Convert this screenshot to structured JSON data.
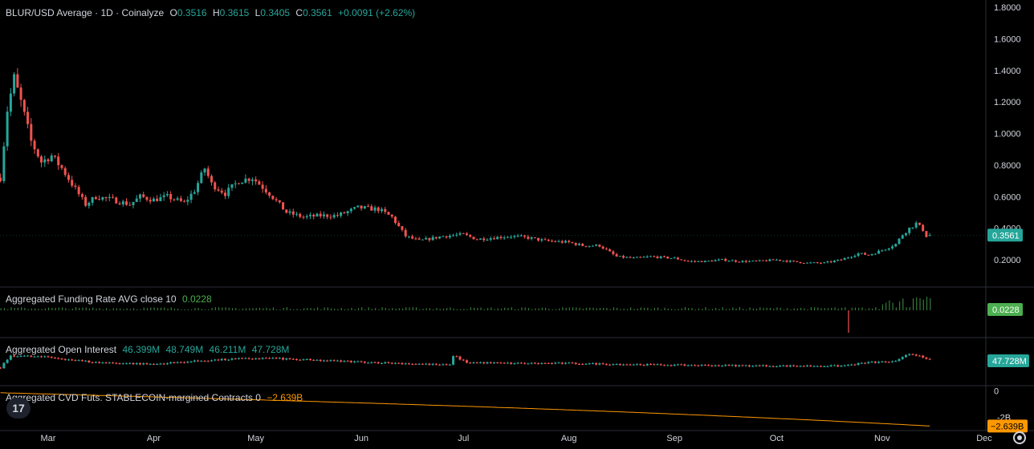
{
  "header": {
    "symbol": "BLUR/USD Average · 1D · Coinalyze",
    "o_label": "O",
    "o": "0.3516",
    "h_label": "H",
    "h": "0.3615",
    "l_label": "L",
    "l": "0.3405",
    "c_label": "C",
    "c": "0.3561",
    "change": "+0.0091 (+2.62%)"
  },
  "panes": {
    "funding": {
      "title": "Aggregated Funding Rate AVG close 10",
      "value": "0.0228",
      "badge": "0.0228"
    },
    "oi": {
      "title": "Aggregated Open Interest",
      "o": "46.399M",
      "h": "48.749M",
      "l": "46.211M",
      "c": "47.728M",
      "badge": "47.728M"
    },
    "cvd": {
      "title": "Aggregated CVD Futs. STABLECOIN-margined Contracts 0",
      "value": "−2.639B",
      "badge": "−2.639B",
      "tick_zero": "0",
      "tick_low": "-2B"
    }
  },
  "price_badge": "0.3561",
  "colors": {
    "up": "#26a69a",
    "down": "#ef5350",
    "funding": "#4caf50",
    "cvd": "#ff9800",
    "badge_price": "#26a69a",
    "badge_funding": "#4caf50",
    "badge_oi": "#26a69a",
    "badge_cvd": "#ff9800"
  },
  "icons": {
    "logo": "tradingview-logo-icon",
    "settings": "gear-icon"
  },
  "chart_data": {
    "type": "candlestick",
    "title": "BLUR/USD Average · 1D · Coinalyze",
    "y_ticks": [
      "1.8000",
      "1.6000",
      "1.4000",
      "1.2000",
      "1.0000",
      "0.8000",
      "0.6000",
      "0.4000",
      "0.2000"
    ],
    "ylim": [
      0.07,
      1.82
    ],
    "x_ticks": [
      "Mar",
      "Apr",
      "May",
      "Jun",
      "Jul",
      "Aug",
      "Sep",
      "Oct",
      "Nov",
      "Dec"
    ],
    "x_tick_dates": [
      "2024-03-01",
      "2024-04-01",
      "2024-05-01",
      "2024-06-01",
      "2024-07-01",
      "2024-08-01",
      "2024-09-01",
      "2024-10-01",
      "2024-11-01",
      "2024-12-01"
    ],
    "start_date": "2024-02-16",
    "end_date": "2024-11-15",
    "close_anchors": [
      [
        "2024-02-16",
        0.72
      ],
      [
        "2024-02-18",
        1.15
      ],
      [
        "2024-02-20",
        1.35
      ],
      [
        "2024-02-22",
        1.2
      ],
      [
        "2024-02-25",
        0.95
      ],
      [
        "2024-02-28",
        0.82
      ],
      [
        "2024-03-02",
        0.86
      ],
      [
        "2024-03-05",
        0.78
      ],
      [
        "2024-03-08",
        0.68
      ],
      [
        "2024-03-12",
        0.55
      ],
      [
        "2024-03-15",
        0.6
      ],
      [
        "2024-03-20",
        0.58
      ],
      [
        "2024-03-25",
        0.55
      ],
      [
        "2024-03-28",
        0.6
      ],
      [
        "2024-04-01",
        0.58
      ],
      [
        "2024-04-05",
        0.6
      ],
      [
        "2024-04-10",
        0.56
      ],
      [
        "2024-04-13",
        0.64
      ],
      [
        "2024-04-16",
        0.78
      ],
      [
        "2024-04-18",
        0.68
      ],
      [
        "2024-04-22",
        0.62
      ],
      [
        "2024-04-26",
        0.7
      ],
      [
        "2024-04-30",
        0.72
      ],
      [
        "2024-05-05",
        0.62
      ],
      [
        "2024-05-10",
        0.5
      ],
      [
        "2024-05-15",
        0.47
      ],
      [
        "2024-05-20",
        0.48
      ],
      [
        "2024-05-25",
        0.48
      ],
      [
        "2024-05-31",
        0.53
      ],
      [
        "2024-06-06",
        0.52
      ],
      [
        "2024-06-10",
        0.47
      ],
      [
        "2024-06-14",
        0.35
      ],
      [
        "2024-06-18",
        0.32
      ],
      [
        "2024-06-25",
        0.35
      ],
      [
        "2024-07-01",
        0.36
      ],
      [
        "2024-07-05",
        0.33
      ],
      [
        "2024-07-10",
        0.34
      ],
      [
        "2024-07-15",
        0.35
      ],
      [
        "2024-07-20",
        0.34
      ],
      [
        "2024-07-25",
        0.32
      ],
      [
        "2024-08-01",
        0.31
      ],
      [
        "2024-08-05",
        0.29
      ],
      [
        "2024-08-10",
        0.29
      ],
      [
        "2024-08-15",
        0.22
      ],
      [
        "2024-08-20",
        0.21
      ],
      [
        "2024-08-25",
        0.22
      ],
      [
        "2024-09-01",
        0.21
      ],
      [
        "2024-09-05",
        0.19
      ],
      [
        "2024-09-10",
        0.19
      ],
      [
        "2024-09-15",
        0.2
      ],
      [
        "2024-09-20",
        0.19
      ],
      [
        "2024-09-25",
        0.19
      ],
      [
        "2024-10-01",
        0.2
      ],
      [
        "2024-10-05",
        0.19
      ],
      [
        "2024-10-10",
        0.18
      ],
      [
        "2024-10-15",
        0.18
      ],
      [
        "2024-10-20",
        0.2
      ],
      [
        "2024-10-25",
        0.24
      ],
      [
        "2024-10-28",
        0.23
      ],
      [
        "2024-11-01",
        0.26
      ],
      [
        "2024-11-05",
        0.3
      ],
      [
        "2024-11-07",
        0.36
      ],
      [
        "2024-11-09",
        0.4
      ],
      [
        "2024-11-11",
        0.43
      ],
      [
        "2024-11-13",
        0.39
      ],
      [
        "2024-11-14",
        0.35
      ],
      [
        "2024-11-15",
        0.3561
      ]
    ],
    "last_candle": {
      "open": 0.3516,
      "high": 0.3615,
      "low": 0.3405,
      "close": 0.3561
    },
    "funding_rate": {
      "last": 0.0228,
      "ylim": [
        -0.03,
        0.03
      ]
    },
    "open_interest": {
      "ylim_m": [
        20,
        70
      ],
      "anchors_m": [
        [
          "2024-02-16",
          38
        ],
        [
          "2024-02-19",
          52
        ],
        [
          "2024-03-01",
          50
        ],
        [
          "2024-03-15",
          44
        ],
        [
          "2024-04-01",
          42
        ],
        [
          "2024-04-15",
          46
        ],
        [
          "2024-04-25",
          48
        ],
        [
          "2024-05-05",
          49
        ],
        [
          "2024-05-15",
          47
        ],
        [
          "2024-06-05",
          44
        ],
        [
          "2024-06-20",
          42
        ],
        [
          "2024-06-27",
          41
        ],
        [
          "2024-06-28",
          52
        ],
        [
          "2024-07-02",
          44
        ],
        [
          "2024-07-15",
          43
        ],
        [
          "2024-08-01",
          43
        ],
        [
          "2024-08-15",
          42
        ],
        [
          "2024-09-01",
          41
        ],
        [
          "2024-10-01",
          40
        ],
        [
          "2024-10-20",
          40
        ],
        [
          "2024-10-24",
          42
        ],
        [
          "2024-10-28",
          44
        ],
        [
          "2024-11-05",
          45
        ],
        [
          "2024-11-09",
          54
        ],
        [
          "2024-11-12",
          52
        ],
        [
          "2024-11-15",
          47.728
        ]
      ]
    },
    "cvd": {
      "ylim_b": [
        -2.8,
        0.2
      ],
      "start_b": -0.15,
      "end_b": -2.639
    }
  }
}
